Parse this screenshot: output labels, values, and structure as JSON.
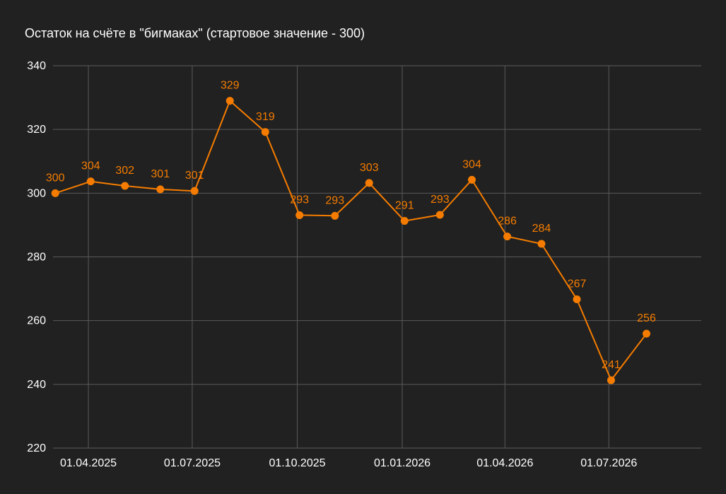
{
  "chart_data": {
    "type": "line",
    "title": "Остаток на счёте в \"бигмаках\" (стартовое значение - 300)",
    "xlabel": "",
    "ylabel": "",
    "ylim": [
      220,
      340
    ],
    "yticks": [
      220,
      240,
      260,
      280,
      300,
      320,
      340
    ],
    "xlim": [
      "2025-03-01",
      "2026-09-20"
    ],
    "xtick_dates": [
      "2025-04-01",
      "2025-07-01",
      "2025-10-01",
      "2026-01-01",
      "2026-04-01",
      "2026-07-01"
    ],
    "xtick_labels": [
      "01.04.2025",
      "01.07.2025",
      "01.10.2025",
      "01.01.2026",
      "01.04.2026",
      "01.07.2026"
    ],
    "grid": true,
    "colors": {
      "background": "#212121",
      "grid": "#5a5a5a",
      "line": "#f57c00",
      "label": "#f57c00",
      "text": "#ffffff"
    },
    "series": [
      {
        "points": [
          {
            "x": "2025-03-03",
            "y": 300,
            "label": "300"
          },
          {
            "x": "2025-04-03",
            "y": 303.7,
            "label": "304"
          },
          {
            "x": "2025-05-03",
            "y": 302.3,
            "label": "302"
          },
          {
            "x": "2025-06-03",
            "y": 301.2,
            "label": "301"
          },
          {
            "x": "2025-07-03",
            "y": 300.7,
            "label": "301"
          },
          {
            "x": "2025-08-03",
            "y": 329,
            "label": "329"
          },
          {
            "x": "2025-09-03",
            "y": 319.2,
            "label": "319"
          },
          {
            "x": "2025-10-03",
            "y": 293.1,
            "label": "293"
          },
          {
            "x": "2025-11-03",
            "y": 292.9,
            "label": "293"
          },
          {
            "x": "2025-12-03",
            "y": 303.2,
            "label": "303"
          },
          {
            "x": "2026-01-03",
            "y": 291.3,
            "label": "291"
          },
          {
            "x": "2026-02-03",
            "y": 293.2,
            "label": "293"
          },
          {
            "x": "2026-03-03",
            "y": 304.2,
            "label": "304"
          },
          {
            "x": "2026-04-03",
            "y": 286.4,
            "label": "286"
          },
          {
            "x": "2026-05-03",
            "y": 284.1,
            "label": "284"
          },
          {
            "x": "2026-06-03",
            "y": 266.7,
            "label": "267"
          },
          {
            "x": "2026-07-03",
            "y": 241.3,
            "label": "241"
          },
          {
            "x": "2026-08-03",
            "y": 255.9,
            "label": "256"
          }
        ]
      }
    ]
  }
}
